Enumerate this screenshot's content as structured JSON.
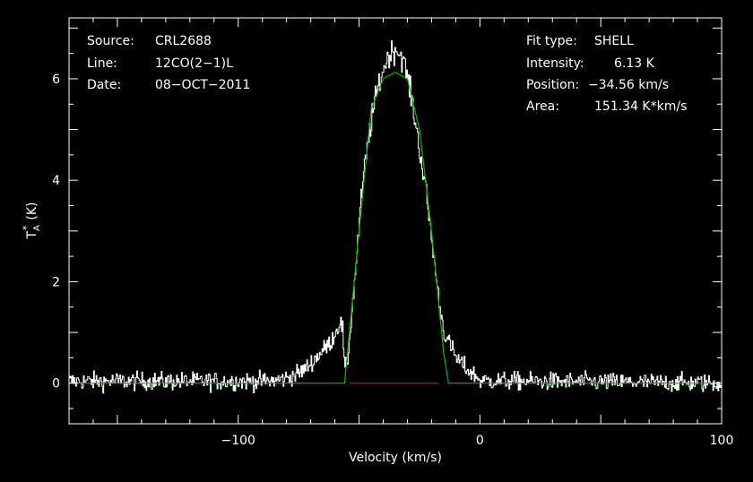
{
  "chart_data": {
    "type": "line",
    "xlabel": "Velocity (km/s)",
    "ylabel_main": "T",
    "ylabel_sup": "*",
    "ylabel_sub": "A",
    "ylabel_unit": "(K)",
    "xlim": [
      -170,
      100
    ],
    "ylim": [
      -0.8,
      7.2
    ],
    "xticks": [
      -100,
      0,
      100
    ],
    "xtick_labels": [
      "−100",
      "0",
      "100"
    ],
    "yticks": [
      0,
      2,
      4,
      6
    ],
    "ytick_labels": [
      "0",
      "2",
      "4",
      "6"
    ],
    "grid": false,
    "colors": {
      "background": "#000000",
      "axes": "#ffffff",
      "spectrum": "#ffffff",
      "fit": "#00c000",
      "window": "#ff0000"
    },
    "info_left": [
      {
        "key": "Source:",
        "value": "CRL2688"
      },
      {
        "key": "Line:",
        "value": "12CO(2−1)L"
      },
      {
        "key": "Date:",
        "value": "08−OCT−2011"
      }
    ],
    "info_right": [
      {
        "key": "Fit type:",
        "value": "SHELL"
      },
      {
        "key": "Intensity:",
        "value": "6.13 K"
      },
      {
        "key": "Position:",
        "value": "−34.56 km/s"
      },
      {
        "key": "Area:",
        "value": "151.34 K*km/s"
      }
    ],
    "fit": {
      "type": "SHELL",
      "intensity": 6.13,
      "position": -34.56,
      "area": 151.34,
      "x": [
        -170,
        -56,
        -50,
        -45,
        -40,
        -35,
        -30,
        -25,
        -20,
        -15,
        -13,
        100
      ],
      "y": [
        0,
        0,
        3.0,
        5.4,
        6.0,
        6.13,
        6.0,
        5.0,
        3.0,
        0.6,
        0,
        0
      ]
    },
    "window_line": {
      "x": [
        -54,
        -17
      ],
      "y": [
        0,
        0
      ]
    },
    "spectrum_profile": {
      "x": [
        -170,
        -90,
        -85,
        -80,
        -75,
        -72,
        -70,
        -67,
        -65,
        -62,
        -60,
        -58,
        -57,
        -56,
        -55,
        -52,
        -50,
        -48,
        -45,
        -42,
        -40,
        -38,
        -35,
        -32,
        -30,
        -28,
        -25,
        -22,
        -20,
        -17,
        -15,
        -12,
        -10,
        -7,
        -5,
        -2,
        0,
        100
      ],
      "y": [
        0.04,
        0.04,
        0.05,
        0.1,
        0.2,
        0.3,
        0.4,
        0.55,
        0.65,
        0.8,
        1.0,
        1.2,
        1.1,
        0.2,
        0.4,
        2.0,
        3.2,
        4.2,
        5.2,
        5.9,
        6.2,
        6.45,
        6.6,
        6.4,
        6.0,
        5.5,
        4.6,
        3.6,
        2.8,
        1.6,
        1.0,
        0.7,
        0.5,
        0.35,
        0.25,
        0.15,
        0.05,
        0.0
      ]
    },
    "noise_rms": 0.09
  }
}
